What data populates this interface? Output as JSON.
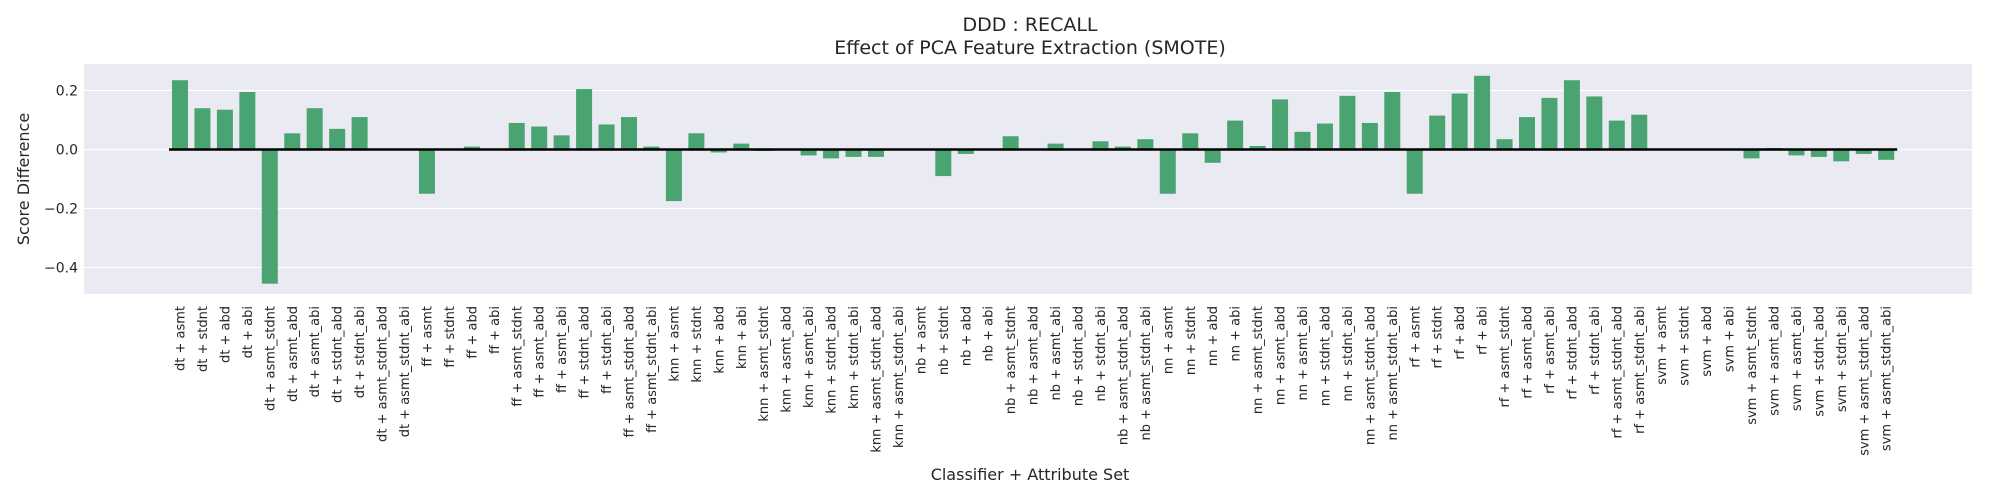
{
  "chart_data": {
    "type": "bar",
    "title": "DDD : RECALL",
    "subtitle": "Effect of PCA Feature Extraction (SMOTE)",
    "xlabel": "Classifier + Attribute Set",
    "ylabel": "Score Difference",
    "ylim": [
      -0.49,
      0.29
    ],
    "yticks": [
      0.2,
      0.0,
      -0.2,
      -0.4
    ],
    "ytick_labels": [
      "0.2",
      "0.0",
      "−0.2",
      "−0.4"
    ],
    "grid": true,
    "bar_color": "#4aa472",
    "background_color": "#eaeaf2",
    "categories": [
      "dt + asmt",
      "dt + stdnt",
      "dt + abd",
      "dt + abi",
      "dt + asmt_stdnt",
      "dt + asmt_abd",
      "dt + asmt_abi",
      "dt + stdnt_abd",
      "dt + stdnt_abi",
      "dt + asmt_stdnt_abd",
      "dt + asmt_stdnt_abi",
      "ff + asmt",
      "ff + stdnt",
      "ff + abd",
      "ff + abi",
      "ff + asmt_stdnt",
      "ff + asmt_abd",
      "ff + asmt_abi",
      "ff + stdnt_abd",
      "ff + stdnt_abi",
      "ff + asmt_stdnt_abd",
      "ff + asmt_stdnt_abi",
      "knn + asmt",
      "knn + stdnt",
      "knn + abd",
      "knn + abi",
      "knn + asmt_stdnt",
      "knn + asmt_abd",
      "knn + asmt_abi",
      "knn + stdnt_abd",
      "knn + stdnt_abi",
      "knn + asmt_stdnt_abd",
      "knn + asmt_stdnt_abi",
      "nb + asmt",
      "nb + stdnt",
      "nb + abd",
      "nb + abi",
      "nb + asmt_stdnt",
      "nb + asmt_abd",
      "nb + asmt_abi",
      "nb + stdnt_abd",
      "nb + stdnt_abi",
      "nb + asmt_stdnt_abd",
      "nb + asmt_stdnt_abi",
      "nn + asmt",
      "nn + stdnt",
      "nn + abd",
      "nn + abi",
      "nn + asmt_stdnt",
      "nn + asmt_abd",
      "nn + asmt_abi",
      "nn + stdnt_abd",
      "nn + stdnt_abi",
      "nn + asmt_stdnt_abd",
      "nn + asmt_stdnt_abi",
      "rf + asmt",
      "rf + stdnt",
      "rf + abd",
      "rf + abi",
      "rf + asmt_stdnt",
      "rf + asmt_abd",
      "rf + asmt_abi",
      "rf + stdnt_abd",
      "rf + stdnt_abi",
      "rf + asmt_stdnt_abd",
      "rf + asmt_stdnt_abi",
      "svm + asmt",
      "svm + stdnt",
      "svm + abd",
      "svm + abi",
      "svm + asmt_stdnt",
      "svm + asmt_abd",
      "svm + asmt_abi",
      "svm + stdnt_abd",
      "svm + stdnt_abi",
      "svm + asmt_stdnt_abd",
      "svm + asmt_stdnt_abi"
    ],
    "values": [
      0.235,
      0.14,
      0.135,
      0.195,
      -0.455,
      0.055,
      0.14,
      0.07,
      0.11,
      0.0,
      0.0,
      -0.15,
      0.0,
      0.01,
      0.0,
      0.09,
      0.078,
      0.048,
      0.205,
      0.085,
      0.11,
      0.01,
      -0.175,
      0.055,
      -0.01,
      0.02,
      -0.005,
      0.0,
      -0.02,
      -0.03,
      -0.025,
      -0.025,
      0.0,
      0.0,
      -0.09,
      -0.015,
      0.0,
      0.045,
      0.0,
      0.02,
      0.0,
      0.028,
      0.01,
      0.035,
      -0.15,
      0.055,
      -0.045,
      0.098,
      0.012,
      0.17,
      0.06,
      0.088,
      0.182,
      0.09,
      0.195,
      -0.15,
      0.115,
      0.19,
      0.25,
      0.035,
      0.11,
      0.175,
      0.235,
      0.18,
      0.098,
      0.118,
      0.0,
      0.0,
      0.0,
      0.0,
      -0.03,
      0.005,
      -0.02,
      -0.025,
      -0.04,
      -0.015,
      -0.035
    ]
  }
}
